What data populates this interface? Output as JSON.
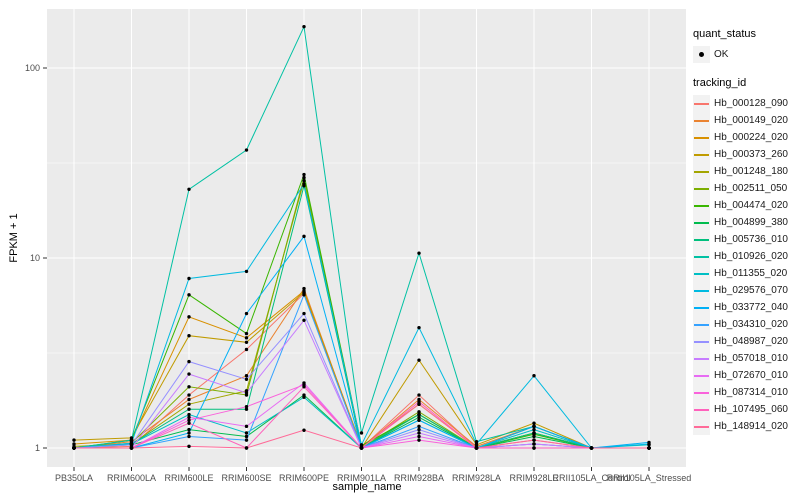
{
  "axes": {
    "x_title": "sample_name",
    "y_title": "FPKM + 1"
  },
  "legend": {
    "quant_status_title": "quant_status",
    "quant_status_items": [
      {
        "label": "OK",
        "symbol": "point"
      }
    ],
    "tracking_title": "tracking_id"
  },
  "chart_data": {
    "type": "line",
    "title": "",
    "xlabel": "sample_name",
    "ylabel": "FPKM + 1",
    "y_scale": "log10",
    "y_ticks": [
      1,
      10,
      100
    ],
    "y_minor_ticks": [
      3.162,
      31.62
    ],
    "ylim": [
      0.79,
      200
    ],
    "grid": "on",
    "legend_position": "right",
    "point_color": "#000000",
    "panel_color": "#ebebeb",
    "grid_color": "#ffffff",
    "tick_label_color": "#4d4d4d",
    "categories": [
      "PB350LA",
      "RRIM600LA",
      "RRIM600LE",
      "RRIM600SE",
      "RRIM600PE",
      "RRIM901LA",
      "RRIM928BA",
      "RRIM928LA",
      "RRIM928LE",
      "RRII105LA_Control",
      "RRII105LA_Stressed"
    ],
    "series": [
      {
        "name": "Hb_000128_090",
        "color": "#F8766D",
        "values": [
          1.0,
          1.02,
          1.9,
          3.3,
          6.5,
          1.0,
          1.9,
          1.0,
          1.1,
          1.0,
          1.0
        ]
      },
      {
        "name": "Hb_000149_020",
        "color": "#EA8331",
        "values": [
          1.0,
          1.08,
          1.8,
          2.4,
          6.9,
          1.0,
          1.8,
          1.02,
          1.3,
          1.0,
          1.0
        ]
      },
      {
        "name": "Hb_000224_020",
        "color": "#D89000",
        "values": [
          1.05,
          1.1,
          4.9,
          3.8,
          6.7,
          1.02,
          1.7,
          1.0,
          1.3,
          1.0,
          1.0
        ]
      },
      {
        "name": "Hb_000373_260",
        "color": "#C09B00",
        "values": [
          1.1,
          1.13,
          3.9,
          3.6,
          6.6,
          1.0,
          2.9,
          1.04,
          1.35,
          1.0,
          1.0
        ]
      },
      {
        "name": "Hb_001248_180",
        "color": "#A3A500",
        "values": [
          1.02,
          1.05,
          1.7,
          2.0,
          25.5,
          1.0,
          1.5,
          1.0,
          1.2,
          1.0,
          1.0
        ]
      },
      {
        "name": "Hb_002511_050",
        "color": "#7CAE00",
        "values": [
          1.0,
          1.06,
          2.1,
          1.9,
          26.5,
          1.0,
          1.55,
          1.0,
          1.2,
          1.0,
          1.0
        ]
      },
      {
        "name": "Hb_004474_020",
        "color": "#39B600",
        "values": [
          1.0,
          1.1,
          6.4,
          4.0,
          27.5,
          1.03,
          1.5,
          1.0,
          1.18,
          1.0,
          1.0
        ]
      },
      {
        "name": "Hb_004899_380",
        "color": "#00BB4E",
        "values": [
          1.0,
          1.04,
          1.25,
          1.15,
          1.9,
          1.0,
          1.45,
          1.0,
          1.15,
          1.0,
          1.0
        ]
      },
      {
        "name": "Hb_005736_010",
        "color": "#00BF7D",
        "values": [
          1.0,
          1.05,
          1.6,
          1.6,
          24.0,
          1.0,
          1.5,
          1.0,
          1.2,
          1.0,
          1.0
        ]
      },
      {
        "name": "Hb_010926_020",
        "color": "#00C1A3",
        "values": [
          1.0,
          1.1,
          23.0,
          37.0,
          165.0,
          1.2,
          10.6,
          1.08,
          1.3,
          1.0,
          1.0
        ]
      },
      {
        "name": "Hb_011355_020",
        "color": "#00BFC4",
        "values": [
          1.0,
          1.05,
          1.5,
          1.2,
          1.85,
          1.0,
          1.4,
          1.0,
          1.25,
          1.0,
          1.04
        ]
      },
      {
        "name": "Hb_029576_070",
        "color": "#00BAE0",
        "values": [
          1.0,
          1.06,
          7.8,
          8.5,
          24.5,
          1.04,
          4.3,
          1.05,
          2.4,
          1.0,
          1.05
        ]
      },
      {
        "name": "Hb_033772_040",
        "color": "#00B0F6",
        "values": [
          1.0,
          1.0,
          1.2,
          5.1,
          13.0,
          1.0,
          1.4,
          1.0,
          1.3,
          1.0,
          1.07
        ]
      },
      {
        "name": "Hb_034310_020",
        "color": "#35A2FF",
        "values": [
          1.0,
          1.0,
          1.15,
          1.1,
          6.4,
          1.0,
          1.3,
          1.0,
          1.05,
          1.0,
          1.0
        ]
      },
      {
        "name": "Hb_048987_020",
        "color": "#9590FF",
        "values": [
          1.0,
          1.04,
          2.85,
          2.3,
          5.1,
          1.0,
          1.25,
          1.0,
          1.05,
          1.0,
          1.0
        ]
      },
      {
        "name": "Hb_057018_010",
        "color": "#C77CFF",
        "values": [
          1.0,
          1.0,
          2.45,
          1.95,
          4.7,
          1.0,
          1.2,
          1.0,
          1.05,
          1.0,
          1.0
        ]
      },
      {
        "name": "Hb_072670_010",
        "color": "#E76BF3",
        "values": [
          1.0,
          1.0,
          1.45,
          1.3,
          2.2,
          1.0,
          1.15,
          1.0,
          1.0,
          1.0,
          1.0
        ]
      },
      {
        "name": "Hb_087314_010",
        "color": "#FA62DB",
        "values": [
          1.0,
          1.0,
          1.4,
          1.65,
          2.15,
          1.0,
          1.1,
          1.0,
          1.0,
          1.0,
          1.0
        ]
      },
      {
        "name": "Hb_107495_060",
        "color": "#FF62BC",
        "values": [
          1.0,
          1.0,
          1.35,
          1.0,
          2.1,
          1.0,
          1.75,
          1.0,
          1.0,
          1.0,
          1.0
        ]
      },
      {
        "name": "Hb_148914_020",
        "color": "#FF6A98",
        "values": [
          1.0,
          1.0,
          1.02,
          1.0,
          1.24,
          1.0,
          1.7,
          1.0,
          1.1,
          1.0,
          1.0
        ]
      }
    ]
  }
}
